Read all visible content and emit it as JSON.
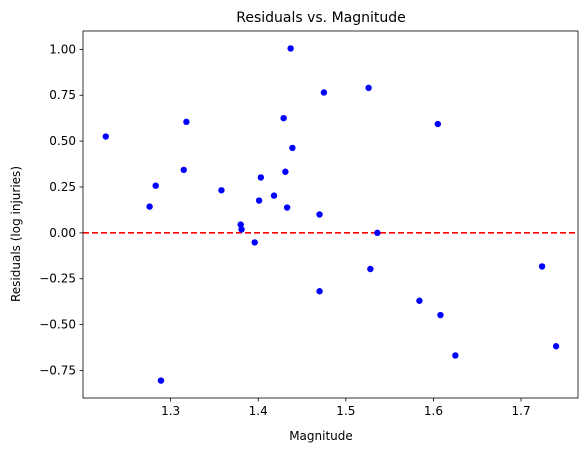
{
  "chart_data": {
    "type": "scatter",
    "title": "Residuals vs. Magnitude",
    "xlabel": "Magnitude",
    "ylabel": "Residuals (log injuries)",
    "xlim": [
      1.2,
      1.765
    ],
    "ylim": [
      -0.9,
      1.1
    ],
    "xticks": [
      1.3,
      1.4,
      1.5,
      1.6,
      1.7
    ],
    "xtick_labels": [
      "1.3",
      "1.4",
      "1.5",
      "1.6",
      "1.7"
    ],
    "yticks": [
      -0.75,
      -0.5,
      -0.25,
      0.0,
      0.25,
      0.5,
      0.75,
      1.0
    ],
    "ytick_labels": [
      "−0.75",
      "−0.50",
      "−0.25",
      "0.00",
      "0.25",
      "0.50",
      "0.75",
      "1.00"
    ],
    "grid": false,
    "point_color": "#0000ff",
    "reference_line": {
      "y": 0.0,
      "color": "#ff0000",
      "style": "dashed"
    },
    "points": [
      {
        "x": 1.226,
        "y": 0.525
      },
      {
        "x": 1.276,
        "y": 0.143
      },
      {
        "x": 1.283,
        "y": 0.257
      },
      {
        "x": 1.289,
        "y": -0.805
      },
      {
        "x": 1.315,
        "y": 0.343
      },
      {
        "x": 1.318,
        "y": 0.605
      },
      {
        "x": 1.358,
        "y": 0.232
      },
      {
        "x": 1.38,
        "y": 0.045
      },
      {
        "x": 1.381,
        "y": 0.018
      },
      {
        "x": 1.396,
        "y": -0.052
      },
      {
        "x": 1.401,
        "y": 0.176
      },
      {
        "x": 1.403,
        "y": 0.302
      },
      {
        "x": 1.418,
        "y": 0.203
      },
      {
        "x": 1.429,
        "y": 0.625
      },
      {
        "x": 1.431,
        "y": 0.333
      },
      {
        "x": 1.433,
        "y": 0.138
      },
      {
        "x": 1.437,
        "y": 1.005
      },
      {
        "x": 1.439,
        "y": 0.463
      },
      {
        "x": 1.47,
        "y": 0.1
      },
      {
        "x": 1.47,
        "y": -0.318
      },
      {
        "x": 1.475,
        "y": 0.765
      },
      {
        "x": 1.526,
        "y": 0.79
      },
      {
        "x": 1.528,
        "y": -0.197
      },
      {
        "x": 1.536,
        "y": 0.0
      },
      {
        "x": 1.584,
        "y": -0.37
      },
      {
        "x": 1.605,
        "y": 0.593
      },
      {
        "x": 1.608,
        "y": -0.448
      },
      {
        "x": 1.625,
        "y": -0.668
      },
      {
        "x": 1.724,
        "y": -0.183
      },
      {
        "x": 1.74,
        "y": -0.618
      }
    ]
  }
}
